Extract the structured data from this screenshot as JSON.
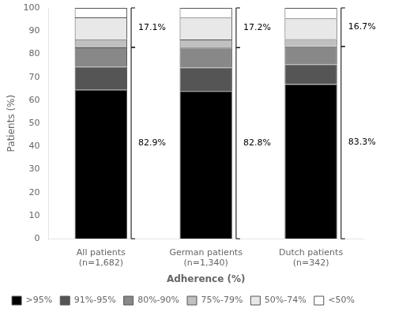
{
  "chart_data": {
    "type": "bar",
    "stacked": true,
    "categories": [
      "All patients\n(n=1,682)",
      "German patients\n(n=1,340)",
      "Dutch patients\n(n=342)"
    ],
    "series": [
      {
        "name": ">95%",
        "color": "#000000",
        "values": [
          64.5,
          64.0,
          67.0
        ]
      },
      {
        "name": "91%-95%",
        "color": "#555555",
        "values": [
          10.0,
          10.2,
          8.5
        ]
      },
      {
        "name": "80%-90%",
        "color": "#888888",
        "values": [
          8.4,
          8.6,
          7.8
        ]
      },
      {
        "name": "75%-79%",
        "color": "#c0c0c0",
        "values": [
          3.5,
          3.5,
          3.2
        ]
      },
      {
        "name": "50%-74%",
        "color": "#e8e8e8",
        "values": [
          9.5,
          9.5,
          9.0
        ]
      },
      {
        "name": "<50%",
        "color": "#ffffff",
        "values": [
          4.1,
          4.2,
          4.5
        ]
      }
    ],
    "xlabel": "Adherence (%)",
    "ylabel": "Patients (%)",
    "ylim": [
      0,
      100
    ],
    "yticks": [
      0,
      10,
      20,
      30,
      40,
      50,
      60,
      70,
      80,
      90,
      100
    ],
    "grid": false,
    "legend": "bottom",
    "annotations": [
      {
        "category": "All patients\n(n=1,682)",
        "from": 0,
        "to": 82.9,
        "text": "82.9%"
      },
      {
        "category": "All patients\n(n=1,682)",
        "from": 82.9,
        "to": 100,
        "text": "17.1%"
      },
      {
        "category": "German patients\n(n=1,340)",
        "from": 0,
        "to": 82.8,
        "text": "82.8%"
      },
      {
        "category": "German patients\n(n=1,340)",
        "from": 82.8,
        "to": 100,
        "text": "17.2%"
      },
      {
        "category": "Dutch patients\n(n=342)",
        "from": 0,
        "to": 83.3,
        "text": "83.3%"
      },
      {
        "category": "Dutch patients\n(n=342)",
        "from": 83.3,
        "to": 100,
        "text": "16.7%"
      }
    ]
  }
}
